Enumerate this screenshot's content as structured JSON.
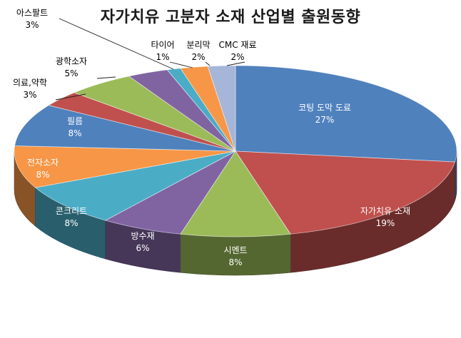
{
  "chart_data": {
    "type": "pie",
    "title": "자가치유 고분자 소재 산업별 출원동향",
    "style": "3d",
    "slices": [
      {
        "label": "코팅 도막 도료",
        "pct_label": "27%",
        "value": 27,
        "color": "#4F81BD",
        "label_placement": "inside"
      },
      {
        "label": "자가치유 소재",
        "pct_label": "19%",
        "value": 19,
        "color": "#C0504D",
        "label_placement": "inside"
      },
      {
        "label": "시멘트",
        "pct_label": "8%",
        "value": 8,
        "color": "#9BBB59",
        "label_placement": "inside"
      },
      {
        "label": "방수재",
        "pct_label": "6%",
        "value": 6,
        "color": "#8064A2",
        "label_placement": "inside"
      },
      {
        "label": "콘크리트",
        "pct_label": "8%",
        "value": 8,
        "color": "#4BACC6",
        "label_placement": "inside"
      },
      {
        "label": "전자소자",
        "pct_label": "8%",
        "value": 8,
        "color": "#F79646",
        "label_placement": "inside"
      },
      {
        "label": "필름",
        "pct_label": "8%",
        "value": 8,
        "color": "#4F81BD",
        "label_placement": "inside"
      },
      {
        "label": "의료,약학",
        "pct_label": "3%",
        "value": 3,
        "color": "#C0504D",
        "label_placement": "outside"
      },
      {
        "label": "광학소자",
        "pct_label": "5%",
        "value": 5,
        "color": "#9BBB59",
        "label_placement": "outside"
      },
      {
        "label": "아스팔트",
        "pct_label": "3%",
        "value": 3,
        "color": "#8064A2",
        "label_placement": "outside"
      },
      {
        "label": "타이어",
        "pct_label": "1%",
        "value": 1,
        "color": "#4BACC6",
        "label_placement": "outside"
      },
      {
        "label": "분리막",
        "pct_label": "2%",
        "value": 2,
        "color": "#F79646",
        "label_placement": "outside"
      },
      {
        "label": "CMC 재료",
        "pct_label": "2%",
        "value": 2,
        "color": "#A5B6D8",
        "label_placement": "outside"
      }
    ],
    "start_angle": "12 o'clock",
    "direction": "clockwise",
    "legend": "none"
  }
}
